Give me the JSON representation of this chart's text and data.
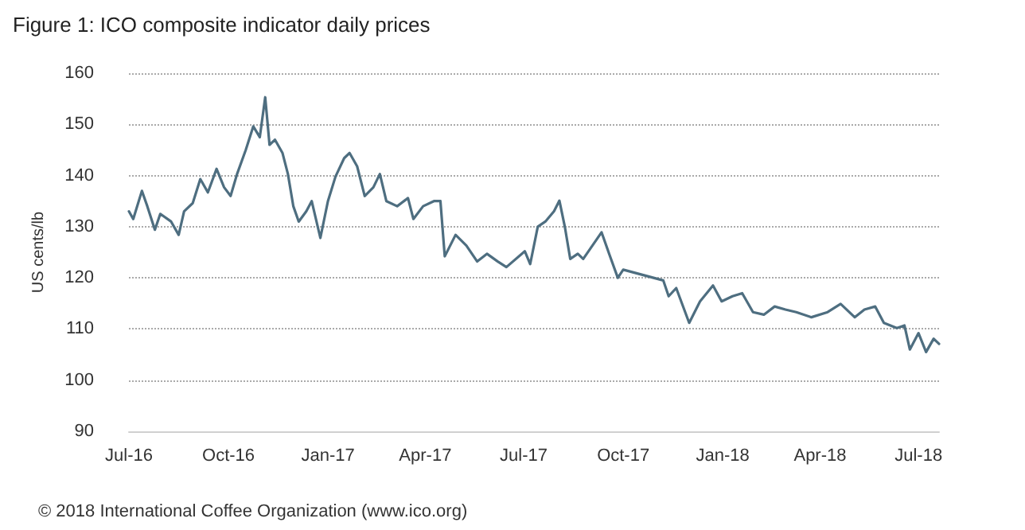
{
  "chart_data": {
    "type": "line",
    "title": "Figure 1: ICO composite indicator daily prices",
    "ylabel": "US cents/lb",
    "annotations": [
      "© 2018 International Coffee Organization (www.ico.org)"
    ],
    "x": [
      "2016-07-01",
      "2016-07-05",
      "2016-07-13",
      "2016-07-18",
      "2016-07-25",
      "2016-07-30",
      "2016-08-09",
      "2016-08-16",
      "2016-08-21",
      "2016-08-29",
      "2016-09-05",
      "2016-09-12",
      "2016-09-20",
      "2016-09-27",
      "2016-10-03",
      "2016-10-09",
      "2016-10-17",
      "2016-10-24",
      "2016-10-30",
      "2016-11-04",
      "2016-11-08",
      "2016-11-13",
      "2016-11-20",
      "2016-11-25",
      "2016-11-30",
      "2016-12-05",
      "2016-12-12",
      "2016-12-17",
      "2016-12-25",
      "2017-01-01",
      "2017-01-08",
      "2017-01-16",
      "2017-01-21",
      "2017-01-28",
      "2017-02-04",
      "2017-02-12",
      "2017-02-18",
      "2017-02-24",
      "2017-03-06",
      "2017-03-16",
      "2017-03-21",
      "2017-03-30",
      "2017-04-09",
      "2017-04-15",
      "2017-04-19",
      "2017-04-29",
      "2017-05-09",
      "2017-05-19",
      "2017-05-28",
      "2017-06-07",
      "2017-06-15",
      "2017-07-02",
      "2017-07-07",
      "2017-07-14",
      "2017-07-21",
      "2017-07-29",
      "2017-08-03",
      "2017-08-08",
      "2017-08-13",
      "2017-08-20",
      "2017-08-25",
      "2017-09-11",
      "2017-09-18",
      "2017-09-26",
      "2017-10-01",
      "2017-11-07",
      "2017-11-12",
      "2017-11-19",
      "2017-12-01",
      "2017-12-11",
      "2017-12-23",
      "2017-12-31",
      "2018-01-10",
      "2018-01-19",
      "2018-01-29",
      "2018-02-08",
      "2018-02-18",
      "2018-02-28",
      "2018-03-10",
      "2018-03-24",
      "2018-04-08",
      "2018-04-20",
      "2018-05-03",
      "2018-05-12",
      "2018-05-22",
      "2018-05-30",
      "2018-06-11",
      "2018-06-18",
      "2018-06-23",
      "2018-07-01",
      "2018-07-08",
      "2018-07-15",
      "2018-07-20"
    ],
    "series": [
      {
        "color": "#4e6e80",
        "values": [
          133,
          131.5,
          137,
          134,
          129.4,
          132.5,
          131,
          128.4,
          133,
          134.6,
          139.3,
          136.7,
          141.3,
          137.7,
          136,
          140.3,
          145,
          149.6,
          147.5,
          155.3,
          146,
          147,
          144.4,
          140.3,
          134,
          131,
          133,
          135,
          127.8,
          135,
          139.8,
          143.4,
          144.4,
          141.8,
          136,
          137.7,
          140.3,
          135,
          134,
          135.6,
          131.5,
          134,
          135,
          135,
          124.2,
          128.4,
          126.3,
          123.2,
          124.7,
          123.2,
          122.1,
          125.2,
          122.7,
          130,
          131,
          133,
          135.1,
          130,
          123.7,
          124.7,
          123.7,
          128.9,
          124.7,
          120,
          121.6,
          119.5,
          116.4,
          118,
          111.2,
          115.4,
          118.5,
          115.4,
          116.4,
          117,
          113.3,
          112.8,
          114.4,
          113.8,
          113.3,
          112.3,
          113.3,
          114.9,
          112.3,
          113.8,
          114.4,
          111.2,
          110.2,
          110.7,
          106,
          109.2,
          105.5,
          108.1,
          107.1
        ]
      }
    ],
    "xlim": [
      "2016-07-01",
      "2018-07-20"
    ],
    "xticks": [
      {
        "value": "2016-07-01",
        "label": "Jul-16"
      },
      {
        "value": "2016-10-01",
        "label": "Oct-16"
      },
      {
        "value": "2017-01-01",
        "label": "Jan-17"
      },
      {
        "value": "2017-04-01",
        "label": "Apr-17"
      },
      {
        "value": "2017-07-01",
        "label": "Jul-17"
      },
      {
        "value": "2017-10-01",
        "label": "Oct-17"
      },
      {
        "value": "2018-01-01",
        "label": "Jan-18"
      },
      {
        "value": "2018-04-01",
        "label": "Apr-18"
      },
      {
        "value": "2018-07-01",
        "label": "Jul-18"
      }
    ],
    "ylim": [
      90,
      160
    ],
    "yticks": [
      90,
      100,
      110,
      120,
      130,
      140,
      150,
      160
    ],
    "grid": "y",
    "marker": "none",
    "line_style": "solid"
  }
}
